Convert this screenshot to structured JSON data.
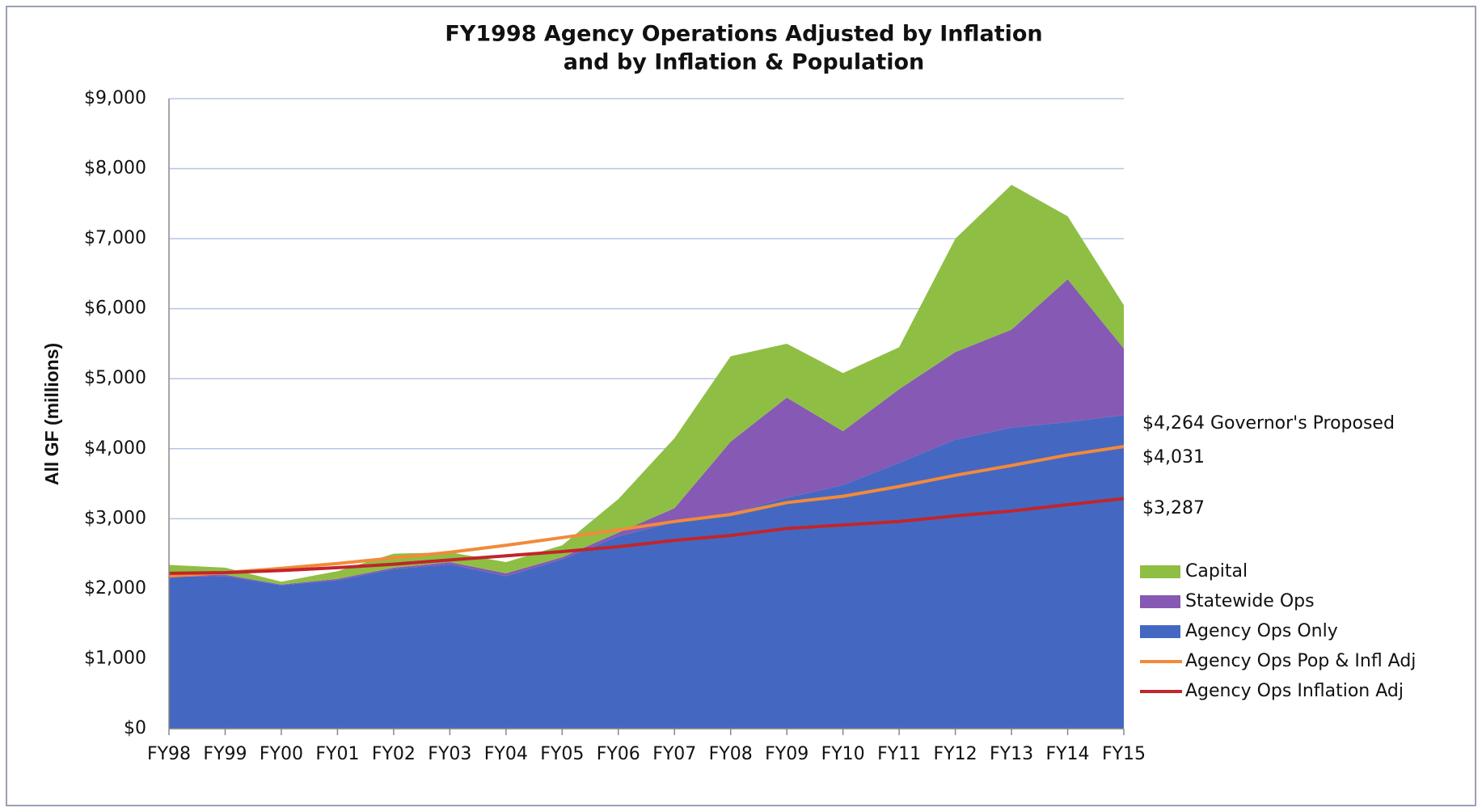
{
  "chart_data": {
    "type": "stacked-area",
    "title": [
      "FY1998 Agency Operations Adjusted by Inflation",
      "and by Inflation & Population"
    ],
    "ylabel": "All GF (millions)",
    "categories": [
      "FY98",
      "FY99",
      "FY00",
      "FY01",
      "FY02",
      "FY03",
      "FY04",
      "FY05",
      "FY06",
      "FY07",
      "FY08",
      "FY09",
      "FY10",
      "FY11",
      "FY12",
      "FY13",
      "FY14",
      "FY15"
    ],
    "series": [
      {
        "name": "Capital",
        "type": "area",
        "color": "#8fbe45",
        "values": [
          140,
          100,
          40,
          110,
          200,
          140,
          160,
          170,
          480,
          1000,
          1220,
          770,
          830,
          600,
          1620,
          2070,
          900,
          620
        ]
      },
      {
        "name": "Statewide Ops",
        "type": "area",
        "color": "#8659b4",
        "values": [
          30,
          20,
          10,
          20,
          20,
          30,
          40,
          30,
          50,
          200,
          1020,
          1430,
          770,
          1050,
          1250,
          1400,
          2040,
          950
        ]
      },
      {
        "name": "Agency Ops Only",
        "type": "area",
        "color": "#4468c2",
        "values": [
          2170,
          2180,
          2050,
          2120,
          2280,
          2350,
          2180,
          2420,
          2750,
          2950,
          3080,
          3300,
          3480,
          3800,
          4130,
          4300,
          4380,
          4480
        ]
      },
      {
        "name": "Agency Ops Pop & Infl Adj",
        "type": "line",
        "color": "#f28a3a",
        "values": [
          2180,
          2230,
          2290,
          2360,
          2440,
          2520,
          2620,
          2730,
          2840,
          2960,
          3060,
          3230,
          3320,
          3460,
          3620,
          3760,
          3910,
          4031
        ]
      },
      {
        "name": "Agency Ops Inflation Adj",
        "type": "line",
        "color": "#c0262b",
        "values": [
          2220,
          2230,
          2260,
          2300,
          2350,
          2410,
          2470,
          2530,
          2600,
          2690,
          2760,
          2860,
          2910,
          2960,
          3040,
          3110,
          3200,
          3287
        ]
      }
    ],
    "annotations": [
      "$4,264 Governor's Proposed",
      "$4,031",
      "$3,287"
    ],
    "ylim": [
      0,
      9000
    ],
    "yticks": [
      {
        "value": 0,
        "label": "$0"
      },
      {
        "value": 1000,
        "label": "$1,000"
      },
      {
        "value": 2000,
        "label": "$2,000"
      },
      {
        "value": 3000,
        "label": "$3,000"
      },
      {
        "value": 4000,
        "label": "$4,000"
      },
      {
        "value": 5000,
        "label": "$5,000"
      },
      {
        "value": 6000,
        "label": "$6,000"
      },
      {
        "value": 7000,
        "label": "$7,000"
      },
      {
        "value": 8000,
        "label": "$8,000"
      },
      {
        "value": 9000,
        "label": "$9,000"
      }
    ],
    "grid": true
  }
}
